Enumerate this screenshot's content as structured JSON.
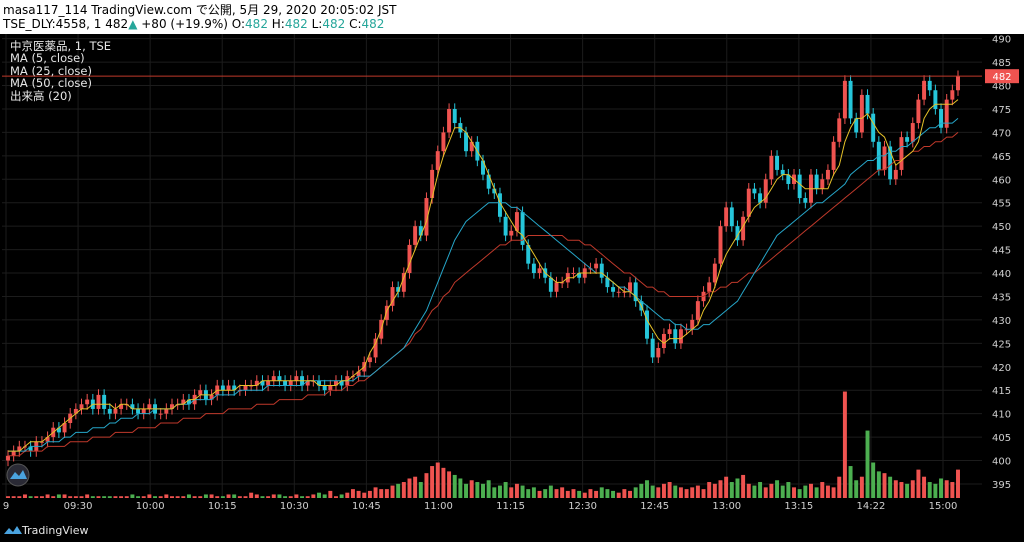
{
  "header": {
    "line1": "masa117_114 TradingView.com で公開, 5月 29, 2020 20:05:02 JST",
    "symbol": "TSE_DLY:4558, 1",
    "price": "482",
    "arrow": "▲",
    "change": "+80 (+19.9%)",
    "o_label": "O:",
    "o_value": "482",
    "h_label": "H:",
    "h_value": "482",
    "l_label": "L:",
    "l_value": "482",
    "c_label": "C:",
    "c_value": "482"
  },
  "legend": {
    "title": "中京医薬品, 1, TSE",
    "ma5": "MA (5, close)",
    "ma25": "MA (25, close)",
    "ma50": "MA (50, close)",
    "volume": "出来高 (20)"
  },
  "footer": {
    "brand": "TradingView"
  },
  "colors": {
    "up": "#ef5350",
    "down": "#26c6da",
    "vol_up": "#ef5350",
    "vol_down": "#4caf50",
    "ma5": "#e6c229",
    "ma25": "#26a6c9",
    "ma50": "#c0392b",
    "grid": "#1c1c1c",
    "price_line": "#c0392b",
    "price_label_bg": "#ef5350"
  },
  "chart_data": {
    "type": "candlestick",
    "ylim": [
      392,
      491
    ],
    "y_ticks": [
      "395",
      "400",
      "405",
      "410",
      "415",
      "420",
      "425",
      "430",
      "435",
      "440",
      "445",
      "450",
      "455",
      "460",
      "465",
      "470",
      "475",
      "480",
      "485",
      "490"
    ],
    "x_ticks": [
      "9",
      "09:30",
      "10:00",
      "10:15",
      "10:30",
      "10:45",
      "11:00",
      "11:15",
      "12:30",
      "12:45",
      "13:00",
      "13:15",
      "14:22",
      "15:00"
    ],
    "current_price": "482",
    "grid": true,
    "close": [
      401,
      402,
      403,
      403,
      402,
      404,
      404,
      405,
      407,
      406,
      408,
      410,
      411,
      412,
      413,
      411,
      414,
      411,
      410,
      411,
      412,
      412,
      411,
      410,
      411,
      412,
      410,
      410,
      411,
      412,
      412,
      413,
      412,
      414,
      415,
      413,
      414,
      416,
      415,
      416,
      415,
      415,
      416,
      416,
      417,
      416,
      417,
      418,
      417,
      416,
      417,
      418,
      416,
      417,
      417,
      416,
      415,
      416,
      417,
      416,
      418,
      418,
      419,
      421,
      422,
      426,
      430,
      433,
      437,
      436,
      440,
      446,
      450,
      448,
      456,
      462,
      466,
      470,
      475,
      472,
      470,
      466,
      468,
      464,
      461,
      458,
      457,
      452,
      448,
      449,
      453,
      446,
      442,
      440,
      441,
      439,
      436,
      438,
      438,
      440,
      440,
      439,
      441,
      441,
      442,
      439,
      437,
      436,
      436,
      436,
      438,
      434,
      432,
      426,
      422,
      424,
      427,
      428,
      425,
      428,
      428,
      430,
      434,
      436,
      438,
      442,
      450,
      454,
      450,
      447,
      452,
      458,
      457,
      455,
      460,
      465,
      462,
      461,
      459,
      461,
      456,
      455,
      461,
      458,
      460,
      462,
      468,
      473,
      481,
      473,
      470,
      478,
      474,
      468,
      462,
      467,
      460,
      462,
      469,
      468,
      472,
      477,
      481,
      479,
      475,
      471,
      477,
      479,
      482
    ],
    "ma5": [
      402,
      402,
      402,
      403,
      404,
      404,
      404,
      405,
      406,
      407,
      408,
      409,
      410,
      411,
      411,
      412,
      412,
      412,
      412,
      411,
      412,
      412,
      411,
      411,
      411,
      411,
      411,
      411,
      411,
      411,
      412,
      412,
      413,
      413,
      414,
      414,
      414,
      415,
      415,
      415,
      415,
      416,
      416,
      416,
      416,
      417,
      417,
      417,
      417,
      417,
      417,
      417,
      417,
      417,
      417,
      416,
      416,
      416,
      416,
      417,
      417,
      418,
      419,
      420,
      423,
      425,
      428,
      432,
      434,
      436,
      439,
      442,
      445,
      448,
      451,
      456,
      461,
      465,
      468,
      471,
      471,
      470,
      468,
      466,
      464,
      461,
      458,
      455,
      453,
      451,
      449,
      448,
      446,
      444,
      442,
      440,
      439,
      438,
      438,
      439,
      439,
      440,
      440,
      440,
      440,
      440,
      439,
      438,
      437,
      436,
      436,
      435,
      433,
      430,
      428,
      426,
      425,
      426,
      426,
      426,
      427,
      428,
      429,
      432,
      434,
      437,
      441,
      444,
      446,
      448,
      450,
      452,
      454,
      455,
      456,
      458,
      460,
      461,
      461,
      460,
      459,
      458,
      458,
      458,
      458,
      458,
      461,
      463,
      468,
      471,
      473,
      473,
      474,
      472,
      470,
      469,
      466,
      463,
      464,
      465,
      466,
      468,
      473,
      475,
      476,
      476,
      476,
      476,
      477
    ],
    "ma25": [
      402,
      402,
      402,
      402,
      403,
      403,
      403,
      404,
      404,
      404,
      405,
      405,
      406,
      406,
      406,
      407,
      407,
      407,
      408,
      408,
      409,
      409,
      409,
      410,
      410,
      410,
      411,
      411,
      411,
      411,
      412,
      412,
      412,
      413,
      413,
      413,
      413,
      414,
      414,
      414,
      414,
      415,
      415,
      415,
      415,
      415,
      416,
      416,
      416,
      416,
      416,
      416,
      416,
      417,
      417,
      417,
      417,
      417,
      417,
      417,
      417,
      417,
      418,
      418,
      418,
      419,
      420,
      421,
      422,
      423,
      424,
      426,
      428,
      430,
      432,
      435,
      438,
      441,
      444,
      447,
      449,
      451,
      452,
      453,
      454,
      455,
      455,
      455,
      455,
      454,
      454,
      453,
      452,
      451,
      450,
      449,
      448,
      447,
      446,
      445,
      444,
      443,
      442,
      441,
      440,
      440,
      439,
      438,
      437,
      437,
      436,
      435,
      434,
      433,
      432,
      431,
      430,
      430,
      429,
      429,
      428,
      428,
      428,
      429,
      429,
      430,
      431,
      432,
      433,
      434,
      436,
      438,
      440,
      442,
      444,
      446,
      448,
      449,
      450,
      451,
      452,
      453,
      454,
      455,
      455,
      456,
      457,
      458,
      459,
      461,
      462,
      463,
      464,
      464,
      465,
      465,
      466,
      466,
      467,
      467,
      468,
      469,
      470,
      471,
      471,
      472,
      472,
      472,
      473
    ],
    "ma50": [
      401,
      401,
      401,
      402,
      402,
      402,
      402,
      403,
      403,
      403,
      403,
      404,
      404,
      404,
      404,
      405,
      405,
      405,
      405,
      406,
      406,
      406,
      406,
      407,
      407,
      407,
      407,
      408,
      408,
      408,
      408,
      409,
      409,
      409,
      409,
      410,
      410,
      410,
      410,
      411,
      411,
      411,
      411,
      411,
      412,
      412,
      412,
      412,
      413,
      413,
      413,
      413,
      413,
      414,
      414,
      414,
      414,
      415,
      415,
      415,
      416,
      416,
      417,
      417,
      418,
      419,
      420,
      421,
      422,
      423,
      424,
      425,
      427,
      428,
      430,
      432,
      433,
      435,
      436,
      438,
      439,
      440,
      441,
      442,
      443,
      444,
      445,
      446,
      446,
      447,
      447,
      447,
      448,
      448,
      448,
      448,
      448,
      448,
      448,
      447,
      447,
      447,
      446,
      446,
      445,
      444,
      443,
      442,
      441,
      440,
      440,
      439,
      438,
      437,
      437,
      436,
      436,
      435,
      435,
      435,
      435,
      435,
      435,
      435,
      436,
      436,
      437,
      437,
      438,
      438,
      439,
      440,
      440,
      441,
      442,
      443,
      444,
      445,
      446,
      447,
      448,
      449,
      450,
      451,
      452,
      453,
      454,
      455,
      456,
      457,
      458,
      459,
      460,
      461,
      462,
      462,
      463,
      464,
      464,
      465,
      466,
      466,
      467,
      467,
      468,
      468,
      469,
      469,
      470
    ],
    "volume": [
      1,
      1,
      1,
      2,
      1,
      1,
      1,
      2,
      1,
      2,
      2,
      1,
      1,
      1,
      2,
      1,
      1,
      1,
      1,
      1,
      1,
      1,
      2,
      1,
      1,
      2,
      1,
      1,
      2,
      1,
      1,
      1,
      2,
      1,
      1,
      2,
      2,
      1,
      1,
      2,
      2,
      1,
      1,
      3,
      2,
      1,
      1,
      2,
      2,
      1,
      1,
      2,
      1,
      1,
      2,
      3,
      2,
      4,
      1,
      2,
      3,
      5,
      4,
      3,
      4,
      6,
      5,
      5,
      7,
      8,
      9,
      11,
      12,
      9,
      14,
      18,
      20,
      17,
      15,
      13,
      11,
      8,
      10,
      9,
      8,
      10,
      6,
      7,
      9,
      6,
      8,
      7,
      5,
      6,
      4,
      5,
      7,
      5,
      6,
      4,
      5,
      4,
      3,
      5,
      4,
      6,
      5,
      4,
      3,
      5,
      4,
      6,
      8,
      10,
      7,
      6,
      8,
      9,
      7,
      6,
      5,
      6,
      7,
      5,
      9,
      8,
      10,
      12,
      9,
      11,
      13,
      8,
      7,
      9,
      6,
      8,
      10,
      7,
      9,
      6,
      5,
      7,
      8,
      6,
      9,
      7,
      6,
      12,
      60,
      18,
      10,
      12,
      38,
      20,
      15,
      14,
      12,
      10,
      9,
      8,
      10,
      16,
      12,
      9,
      8,
      11,
      10,
      9,
      16
    ],
    "vol_ylim": [
      0,
      62
    ]
  }
}
